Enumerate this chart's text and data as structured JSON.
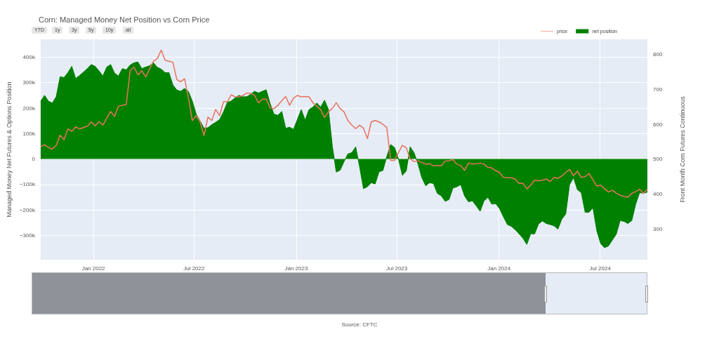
{
  "chart_data": {
    "type": "area",
    "title": "Corn: Managed Money Net Position vs Corn Price",
    "ylabel": "Managed Money Net Futures & Options Position",
    "y2label": "Front Month Corn Futures Continuous",
    "annotations": [
      "YTD",
      "1y",
      "3y",
      "5y",
      "10y",
      "all",
      "Source: CFTC"
    ],
    "x": [
      "2021-09-28",
      "2021-10-05",
      "2021-10-12",
      "2021-10-19",
      "2021-10-26",
      "2021-11-02",
      "2021-11-09",
      "2021-11-16",
      "2021-11-23",
      "2021-11-30",
      "2021-12-07",
      "2021-12-14",
      "2021-12-21",
      "2021-12-28",
      "2022-01-04",
      "2022-01-11",
      "2022-01-18",
      "2022-01-25",
      "2022-02-01",
      "2022-02-08",
      "2022-02-15",
      "2022-02-22",
      "2022-03-01",
      "2022-03-08",
      "2022-03-15",
      "2022-03-22",
      "2022-03-29",
      "2022-04-05",
      "2022-04-12",
      "2022-04-19",
      "2022-04-26",
      "2022-05-03",
      "2022-05-10",
      "2022-05-17",
      "2022-05-24",
      "2022-05-31",
      "2022-06-07",
      "2022-06-14",
      "2022-06-21",
      "2022-06-28",
      "2022-07-05",
      "2022-07-12",
      "2022-07-19",
      "2022-07-26",
      "2022-08-02",
      "2022-08-09",
      "2022-08-16",
      "2022-08-23",
      "2022-08-30",
      "2022-09-06",
      "2022-09-13",
      "2022-09-20",
      "2022-09-27",
      "2022-10-04",
      "2022-10-11",
      "2022-10-18",
      "2022-10-25",
      "2022-11-01",
      "2022-11-08",
      "2022-11-15",
      "2022-11-22",
      "2022-11-29",
      "2022-12-06",
      "2022-12-13",
      "2022-12-20",
      "2022-12-27",
      "2023-01-03",
      "2023-01-10",
      "2023-01-17",
      "2023-01-24",
      "2023-01-31",
      "2023-02-07",
      "2023-02-14",
      "2023-02-21",
      "2023-02-28",
      "2023-03-07",
      "2023-03-14",
      "2023-03-21",
      "2023-03-28",
      "2023-04-04",
      "2023-04-11",
      "2023-04-18",
      "2023-04-25",
      "2023-05-02",
      "2023-05-09",
      "2023-05-16",
      "2023-05-23",
      "2023-05-30",
      "2023-06-06",
      "2023-06-13",
      "2023-06-20",
      "2023-06-27",
      "2023-07-04",
      "2023-07-11",
      "2023-07-18",
      "2023-07-25",
      "2023-08-01",
      "2023-08-08",
      "2023-08-15",
      "2023-08-22",
      "2023-08-29",
      "2023-09-05",
      "2023-09-12",
      "2023-09-19",
      "2023-09-26",
      "2023-10-03",
      "2023-10-10",
      "2023-10-17",
      "2023-10-24",
      "2023-10-31",
      "2023-11-07",
      "2023-11-14",
      "2023-11-21",
      "2023-11-28",
      "2023-12-05",
      "2023-12-12",
      "2023-12-19",
      "2023-12-26",
      "2024-01-02",
      "2024-01-09",
      "2024-01-16",
      "2024-01-23",
      "2024-01-30",
      "2024-02-06",
      "2024-02-13",
      "2024-02-20",
      "2024-02-27",
      "2024-03-05",
      "2024-03-12",
      "2024-03-19",
      "2024-03-26",
      "2024-04-02",
      "2024-04-09",
      "2024-04-16",
      "2024-04-23",
      "2024-04-30",
      "2024-05-07",
      "2024-05-14",
      "2024-05-21",
      "2024-05-28",
      "2024-06-04",
      "2024-06-11",
      "2024-06-18",
      "2024-06-25",
      "2024-07-02",
      "2024-07-09",
      "2024-07-16",
      "2024-07-23",
      "2024-07-30",
      "2024-08-06",
      "2024-08-13",
      "2024-08-20",
      "2024-08-27",
      "2024-09-03",
      "2024-09-10",
      "2024-09-17",
      "2024-09-24"
    ],
    "series": [
      {
        "name": "price",
        "type": "line",
        "axis": "y2",
        "color": "#e9725d",
        "values": [
          536,
          542,
          534,
          529,
          540,
          569,
          556,
          587,
          580,
          593,
          587,
          591,
          595,
          607,
          596,
          608,
          598,
          618,
          637,
          623,
          652,
          655,
          657,
          754,
          764,
          742,
          754,
          736,
          759,
          781,
          789,
          813,
          784,
          781,
          778,
          729,
          722,
          731,
          675,
          611,
          625,
          607,
          568,
          621,
          611,
          643,
          625,
          665,
          665,
          685,
          679,
          679,
          683,
          690,
          689,
          683,
          662,
          672,
          673,
          647,
          645,
          655,
          668,
          680,
          655,
          675,
          683,
          679,
          680,
          679,
          662,
          652,
          642,
          620,
          636,
          646,
          662,
          645,
          636,
          611,
          598,
          588,
          598,
          589,
          559,
          607,
          611,
          607,
          600,
          591,
          497,
          497,
          519,
          540,
          533,
          501,
          493,
          496,
          491,
          486,
          487,
          481,
          482,
          481,
          495,
          496,
          499,
          486,
          482,
          468,
          489,
          486,
          487,
          489,
          486,
          477,
          475,
          467,
          462,
          448,
          447,
          447,
          443,
          431,
          431,
          415,
          426,
          440,
          438,
          440,
          443,
          436,
          448,
          445,
          452,
          462,
          471,
          453,
          466,
          448,
          450,
          459,
          441,
          423,
          426,
          415,
          406,
          411,
          403,
          397,
          393,
          391,
          402,
          407,
          414,
          402,
          414
        ]
      },
      {
        "name": "net position",
        "color": "#008000",
        "values": [
          227000,
          250000,
          227000,
          220000,
          245000,
          323000,
          320000,
          339000,
          364000,
          316000,
          328000,
          341000,
          355000,
          371000,
          364000,
          346000,
          326000,
          361000,
          371000,
          337000,
          326000,
          355000,
          350000,
          369000,
          378000,
          381000,
          355000,
          361000,
          366000,
          378000,
          360000,
          353000,
          339000,
          339000,
          291000,
          271000,
          266000,
          277000,
          265000,
          227000,
          176000,
          149000,
          121000,
          123000,
          135000,
          144000,
          155000,
          185000,
          222000,
          228000,
          240000,
          250000,
          244000,
          245000,
          254000,
          266000,
          259000,
          266000,
          272000,
          217000,
          176000,
          172000,
          187000,
          121000,
          125000,
          117000,
          155000,
          194000,
          153000,
          194000,
          204000,
          220000,
          204000,
          231000,
          194000,
          50000,
          -51000,
          -44000,
          -10000,
          20000,
          25000,
          48000,
          -30000,
          -116000,
          -109000,
          -93000,
          -98000,
          -50000,
          -45000,
          10000,
          57000,
          45000,
          0,
          -64000,
          -47000,
          48000,
          25000,
          -18000,
          -73000,
          -105000,
          -93000,
          -96000,
          -135000,
          -144000,
          -166000,
          -159000,
          -114000,
          -109000,
          -100000,
          -145000,
          -168000,
          -164000,
          -184000,
          -205000,
          -164000,
          -150000,
          -177000,
          -175000,
          -195000,
          -227000,
          -257000,
          -264000,
          -277000,
          -293000,
          -311000,
          -335000,
          -293000,
          -294000,
          -255000,
          -243000,
          -253000,
          -257000,
          -262000,
          -275000,
          -236000,
          -216000,
          -100000,
          -73000,
          -120000,
          -132000,
          -209000,
          -209000,
          -191000,
          -282000,
          -332000,
          -348000,
          -341000,
          -318000,
          -295000,
          -241000,
          -245000,
          -253000,
          -241000,
          -177000,
          -132000,
          -134000,
          -130000
        ]
      }
    ],
    "xlim": [
      "2021-09-28",
      "2024-09-24"
    ],
    "xticks": [
      {
        "value": "2022-01-01",
        "label": "Jan 2022"
      },
      {
        "value": "2022-07-01",
        "label": "Jul 2022"
      },
      {
        "value": "2023-01-01",
        "label": "Jan 2023"
      },
      {
        "value": "2023-07-01",
        "label": "Jul 2023"
      },
      {
        "value": "2024-01-01",
        "label": "Jan 2024"
      },
      {
        "value": "2024-07-01",
        "label": "Jul 2024"
      }
    ],
    "ylim": [
      -395000,
      470000
    ],
    "yticks": [
      {
        "value": -300000,
        "label": "−300k"
      },
      {
        "value": -200000,
        "label": "−200k"
      },
      {
        "value": -100000,
        "label": "−100k"
      },
      0,
      {
        "value": 100000,
        "label": "100k"
      },
      {
        "value": 200000,
        "label": "200k"
      },
      {
        "value": 300000,
        "label": "300k"
      },
      {
        "value": 400000,
        "label": "400k"
      }
    ],
    "y2lim": [
      212,
      844
    ],
    "y2ticks": [
      300,
      400,
      500,
      600,
      700,
      800
    ],
    "grid": true,
    "legend": "top right",
    "marker": "none",
    "line_style": "solid"
  }
}
